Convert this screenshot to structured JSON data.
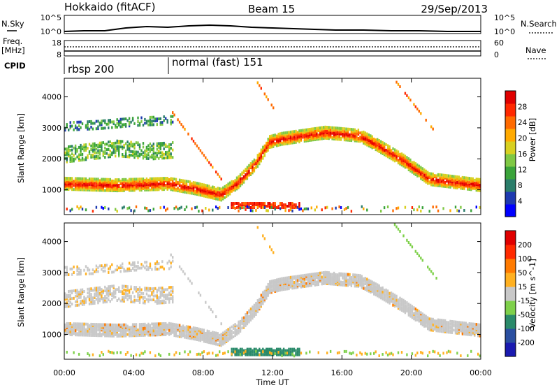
{
  "header": {
    "station": "Hokkaido (fitACF)",
    "beam": "Beam 15",
    "date": "29/Sep/2013"
  },
  "strips": {
    "nsky_label": "N.Sky",
    "nsky_ticks": [
      "10^5",
      "10^0"
    ],
    "nsky_right_ticks": [
      "10^5",
      "10^0"
    ],
    "nsearch_label": "N.Search",
    "freq_label_1": "Freq.",
    "freq_label_2": "[MHz]",
    "freq_ticks": [
      "18",
      "8"
    ],
    "nave_ticks": [
      "60",
      "0"
    ],
    "nave_label": "Nave",
    "cpid_label": "CPID",
    "cpid_segments": [
      {
        "label": "rbsp 200",
        "start_hour": 0
      },
      {
        "label": "normal (fast) 151",
        "start_hour": 6
      }
    ]
  },
  "chart_data": [
    {
      "type": "heatmap",
      "name": "power",
      "ylabel": "Slant Range [km]",
      "ylim": [
        200,
        4600
      ],
      "yticks": [
        "1000",
        "2000",
        "3000",
        "4000"
      ],
      "colorbar_label": "Power [dB]",
      "colorbar_ticks": [
        "28",
        "24",
        "20",
        "16",
        "12",
        "8",
        "4"
      ],
      "colorbar_colors": [
        "#0000ff",
        "#1e3ab0",
        "#2a7d6a",
        "#3aa33a",
        "#7fc844",
        "#d8d020",
        "#ffaa00",
        "#ff6a00",
        "#ff2800",
        "#e00000"
      ]
    },
    {
      "type": "heatmap",
      "name": "velocity",
      "ylabel": "Slant Range [km]",
      "ylim": [
        200,
        4600
      ],
      "yticks": [
        "1000",
        "2000",
        "3000",
        "4000"
      ],
      "xlabel": "Time UT",
      "xticks": [
        "00:00",
        "04:00",
        "08:00",
        "12:00",
        "16:00",
        "20:00",
        "00:00"
      ],
      "colorbar_label": "Velocity [m s^-1]",
      "colorbar_ticks": [
        "200",
        "100",
        "50",
        "15",
        "-15",
        "-50",
        "-100",
        "-200"
      ],
      "colorbar_colors": [
        "#1a1ab0",
        "#2a4fa0",
        "#2a8a6a",
        "#7ed04a",
        "#c8c8c8",
        "#ffb020",
        "#ff7a00",
        "#ff2a00",
        "#e00000"
      ]
    }
  ]
}
